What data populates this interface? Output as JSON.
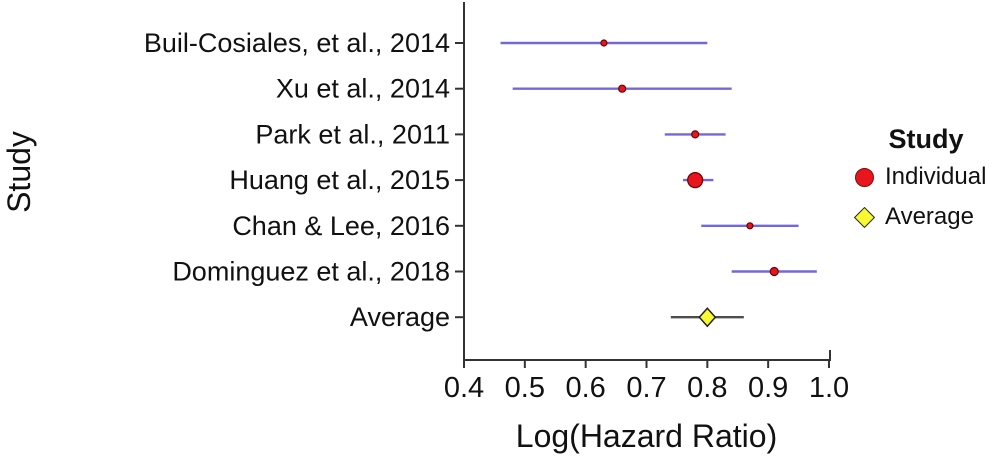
{
  "chart_data": {
    "type": "scatter",
    "subtype": "forest-plot",
    "title": "",
    "xlabel": "Log(Hazard Ratio)",
    "ylabel": "Study",
    "xlim": [
      0.4,
      1.0
    ],
    "xticks": [
      0.4,
      0.5,
      0.6,
      0.7,
      0.8,
      0.9,
      1.0
    ],
    "grid": false,
    "rows": [
      {
        "label": "Buil-Cosiales, et al., 2014",
        "estimate": 0.63,
        "ci_low": 0.46,
        "ci_high": 0.8,
        "group": "Individual",
        "marker": "circle",
        "marker_size": 6
      },
      {
        "label": "Xu et al., 2014",
        "estimate": 0.66,
        "ci_low": 0.48,
        "ci_high": 0.84,
        "group": "Individual",
        "marker": "circle",
        "marker_size": 7
      },
      {
        "label": "Park et al., 2011",
        "estimate": 0.78,
        "ci_low": 0.73,
        "ci_high": 0.83,
        "group": "Individual",
        "marker": "circle",
        "marker_size": 7
      },
      {
        "label": "Huang et al., 2015",
        "estimate": 0.78,
        "ci_low": 0.76,
        "ci_high": 0.81,
        "group": "Individual",
        "marker": "circle",
        "marker_size": 15
      },
      {
        "label": "Chan & Lee, 2016",
        "estimate": 0.87,
        "ci_low": 0.79,
        "ci_high": 0.95,
        "group": "Individual",
        "marker": "circle",
        "marker_size": 6
      },
      {
        "label": "Dominguez et al., 2018",
        "estimate": 0.91,
        "ci_low": 0.84,
        "ci_high": 0.98,
        "group": "Individual",
        "marker": "circle",
        "marker_size": 8
      },
      {
        "label": "Average",
        "estimate": 0.8,
        "ci_low": 0.74,
        "ci_high": 0.86,
        "group": "Average",
        "marker": "diamond",
        "marker_size": 16
      }
    ],
    "legend": {
      "position": "right",
      "title": "Study",
      "items": [
        {
          "label": "Individual",
          "marker": "circle",
          "color": "#e8151c"
        },
        {
          "label": "Average",
          "marker": "diamond",
          "color": "#f9f932"
        }
      ]
    },
    "colors": {
      "individual_point_fill": "#e8151c",
      "individual_point_stroke": "#6b0000",
      "average_point_fill": "#f9f932",
      "average_point_stroke": "#222222",
      "ci_line_individual": "#7268d8",
      "ci_line_average": "#4d4d4d",
      "axis": "#333333"
    }
  }
}
